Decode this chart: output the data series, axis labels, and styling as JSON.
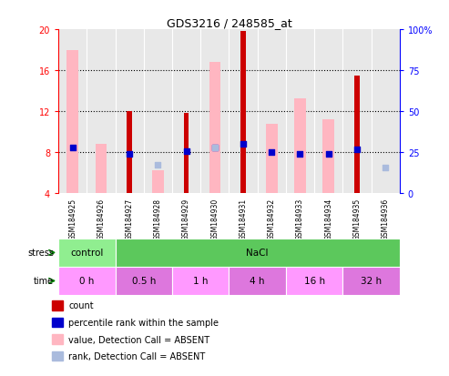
{
  "title": "GDS3216 / 248585_at",
  "samples": [
    "GSM184925",
    "GSM184926",
    "GSM184927",
    "GSM184928",
    "GSM184929",
    "GSM184930",
    "GSM184931",
    "GSM184932",
    "GSM184933",
    "GSM184934",
    "GSM184935",
    "GSM184936"
  ],
  "count_values": [
    null,
    null,
    12.0,
    null,
    11.8,
    null,
    19.8,
    null,
    null,
    null,
    15.5,
    null
  ],
  "percentile_rank": [
    8.5,
    null,
    7.8,
    null,
    8.1,
    8.5,
    8.8,
    8.0,
    7.8,
    7.8,
    8.3,
    null
  ],
  "value_absent": [
    18.0,
    8.8,
    null,
    6.2,
    null,
    16.8,
    null,
    10.8,
    13.3,
    11.2,
    null,
    4.0
  ],
  "rank_absent": [
    null,
    null,
    null,
    6.8,
    null,
    8.5,
    null,
    null,
    null,
    null,
    null,
    6.5
  ],
  "ylim": [
    4,
    20
  ],
  "yticks_left": [
    4,
    8,
    12,
    16,
    20
  ],
  "right_tick_vals": [
    4,
    8,
    12,
    16,
    20
  ],
  "right_tick_labels": [
    "0",
    "25",
    "50",
    "75",
    "100%"
  ],
  "stress_groups": [
    {
      "label": "control",
      "start": 0,
      "end": 2,
      "color": "#90EE90"
    },
    {
      "label": "NaCl",
      "start": 2,
      "end": 12,
      "color": "#5CC85C"
    }
  ],
  "time_groups": [
    {
      "label": "0 h",
      "start": 0,
      "end": 2,
      "color": "#FF99FF"
    },
    {
      "label": "0.5 h",
      "start": 2,
      "end": 4,
      "color": "#DD77DD"
    },
    {
      "label": "1 h",
      "start": 4,
      "end": 6,
      "color": "#FF99FF"
    },
    {
      "label": "4 h",
      "start": 6,
      "end": 8,
      "color": "#DD77DD"
    },
    {
      "label": "16 h",
      "start": 8,
      "end": 10,
      "color": "#FF99FF"
    },
    {
      "label": "32 h",
      "start": 10,
      "end": 12,
      "color": "#DD77DD"
    }
  ],
  "count_color": "#CC0000",
  "percentile_color": "#0000CC",
  "value_absent_color": "#FFB6C1",
  "rank_absent_color": "#AABBDD",
  "background_color": "#FFFFFF",
  "axis_bg_color": "#E8E8E8",
  "legend_items": [
    {
      "color": "#CC0000",
      "marker": "s",
      "label": "count"
    },
    {
      "color": "#0000CC",
      "marker": "s",
      "label": "percentile rank within the sample"
    },
    {
      "color": "#FFB6C1",
      "marker": "s",
      "label": "value, Detection Call = ABSENT"
    },
    {
      "color": "#AABBDD",
      "marker": "s",
      "label": "rank, Detection Call = ABSENT"
    }
  ]
}
